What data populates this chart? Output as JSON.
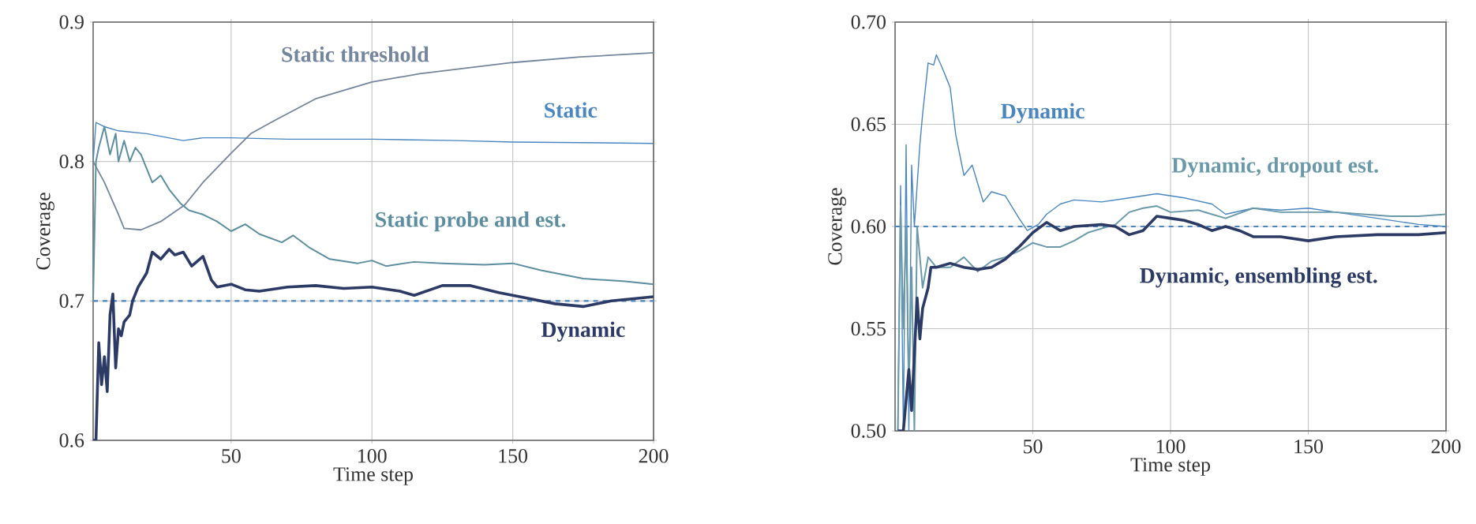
{
  "chart_data": [
    {
      "type": "line",
      "xlabel": "Time step",
      "ylabel": "Coverage",
      "xlim": [
        1,
        200
      ],
      "ylim": [
        0.6,
        0.9
      ],
      "xticks": [
        50,
        100,
        150,
        200
      ],
      "yticks": [
        0.6,
        0.7,
        0.8,
        0.9
      ],
      "grid": true,
      "legend": false,
      "marker": "none",
      "ref_lines": [
        {
          "axis": "y",
          "value": 0.7,
          "color": "#4a86c0",
          "line_style": "dashed"
        }
      ],
      "series": [
        {
          "name": "Static threshold",
          "color": "#74869e",
          "x": [
            1,
            5,
            10,
            12,
            18,
            25,
            33.6,
            40,
            50,
            57,
            65,
            80,
            100,
            117,
            150,
            174,
            200
          ],
          "values": [
            0.8,
            0.785,
            0.762,
            0.752,
            0.751,
            0.757,
            0.769,
            0.785,
            0.806,
            0.82,
            0.829,
            0.845,
            0.857,
            0.863,
            0.871,
            0.875,
            0.878
          ]
        },
        {
          "name": "Static",
          "color": "#4a86c0",
          "x": [
            1,
            2,
            5,
            10,
            20,
            33,
            40,
            50,
            70,
            100,
            130,
            150,
            200
          ],
          "values": [
            0.8,
            0.828,
            0.825,
            0.822,
            0.82,
            0.815,
            0.817,
            0.817,
            0.816,
            0.816,
            0.815,
            0.814,
            0.813
          ]
        },
        {
          "name": "Static probe and est.",
          "color": "#5c8ea0",
          "x": [
            1,
            2,
            3,
            5,
            7,
            9,
            10,
            12,
            14,
            16,
            18,
            20,
            22,
            25,
            28,
            32,
            35,
            40,
            45,
            50,
            55,
            60,
            68,
            72,
            78,
            85,
            95,
            100,
            105,
            115,
            125,
            140,
            150,
            160,
            175,
            190,
            200
          ],
          "values": [
            0.7,
            0.8,
            0.81,
            0.825,
            0.805,
            0.82,
            0.8,
            0.815,
            0.8,
            0.81,
            0.805,
            0.795,
            0.785,
            0.79,
            0.78,
            0.77,
            0.765,
            0.762,
            0.757,
            0.75,
            0.755,
            0.748,
            0.742,
            0.747,
            0.738,
            0.73,
            0.727,
            0.729,
            0.725,
            0.728,
            0.727,
            0.726,
            0.727,
            0.722,
            0.716,
            0.714,
            0.712
          ]
        },
        {
          "name": "Dynamic",
          "color": "#2c3a66",
          "x": [
            1,
            2,
            3,
            4,
            5,
            6,
            7,
            8,
            9,
            10,
            11,
            12,
            14,
            15,
            17,
            20,
            22,
            25,
            28,
            30,
            33,
            36,
            40,
            43,
            45,
            50,
            55,
            60,
            70,
            80,
            90,
            100,
            110,
            115,
            125,
            135,
            145,
            155,
            165,
            175,
            185,
            200
          ],
          "values": [
            0.6,
            0.6,
            0.67,
            0.64,
            0.66,
            0.635,
            0.69,
            0.705,
            0.652,
            0.68,
            0.675,
            0.685,
            0.69,
            0.7,
            0.71,
            0.72,
            0.735,
            0.73,
            0.737,
            0.733,
            0.735,
            0.725,
            0.732,
            0.715,
            0.71,
            0.712,
            0.708,
            0.707,
            0.71,
            0.711,
            0.709,
            0.71,
            0.707,
            0.704,
            0.711,
            0.711,
            0.706,
            0.702,
            0.698,
            0.696,
            0.7,
            0.703
          ]
        }
      ]
    },
    {
      "type": "line",
      "xlabel": "Time step",
      "ylabel": "Coverage",
      "xlim": [
        0,
        200
      ],
      "ylim": [
        0.5,
        0.7
      ],
      "xticks": [
        50,
        100,
        150,
        200
      ],
      "yticks": [
        {
          "value": 0.5,
          "label": "0.50"
        },
        0.55,
        {
          "value": 0.6,
          "label": "0.60"
        },
        0.65,
        {
          "value": 0.7,
          "label": "0.70"
        }
      ],
      "grid": true,
      "legend": false,
      "marker": "none",
      "ref_lines": [
        {
          "axis": "y",
          "value": 0.6,
          "color": "#4a86c0",
          "line_style": "dashed"
        }
      ],
      "series": [
        {
          "name": "Dynamic",
          "color": "#4a86c0",
          "x": [
            1,
            2,
            3,
            4,
            5,
            6,
            7,
            9,
            10,
            12,
            14,
            15,
            17,
            20,
            22,
            25,
            28,
            32,
            35,
            40,
            45,
            48,
            52,
            55,
            60,
            65,
            75,
            85,
            95,
            105,
            115,
            120,
            130,
            140,
            150,
            160,
            175,
            190,
            200
          ],
          "values": [
            0.5,
            0.62,
            0.5,
            0.64,
            0.5,
            0.63,
            0.6,
            0.64,
            0.655,
            0.68,
            0.679,
            0.684,
            0.678,
            0.668,
            0.645,
            0.625,
            0.63,
            0.612,
            0.617,
            0.615,
            0.604,
            0.598,
            0.601,
            0.606,
            0.611,
            0.613,
            0.612,
            0.614,
            0.616,
            0.614,
            0.611,
            0.606,
            0.609,
            0.608,
            0.609,
            0.607,
            0.604,
            0.601,
            0.6
          ]
        },
        {
          "name": "Dynamic, dropout est.",
          "color": "#6a9aaa",
          "x": [
            1,
            2,
            3,
            4,
            5,
            6,
            7,
            8,
            10,
            12,
            15,
            20,
            25,
            30,
            35,
            40,
            45,
            50,
            55,
            60,
            65,
            70,
            80,
            85,
            90,
            95,
            100,
            110,
            115,
            120,
            130,
            140,
            150,
            160,
            170,
            180,
            190,
            200
          ],
          "values": [
            0.5,
            0.61,
            0.55,
            0.6,
            0.52,
            0.58,
            0.5,
            0.6,
            0.57,
            0.585,
            0.58,
            0.58,
            0.585,
            0.578,
            0.583,
            0.585,
            0.588,
            0.592,
            0.59,
            0.59,
            0.593,
            0.597,
            0.601,
            0.607,
            0.609,
            0.61,
            0.607,
            0.608,
            0.606,
            0.604,
            0.609,
            0.607,
            0.607,
            0.607,
            0.606,
            0.605,
            0.605,
            0.606
          ]
        },
        {
          "name": "Dynamic, ensembling est.",
          "color": "#2c3a66",
          "x": [
            1,
            3,
            5,
            6,
            8,
            9,
            10,
            12,
            13,
            15,
            20,
            25,
            30,
            35,
            40,
            45,
            50,
            55,
            60,
            65,
            75,
            80,
            85,
            90,
            95,
            100,
            105,
            110,
            115,
            120,
            125,
            130,
            140,
            150,
            160,
            175,
            190,
            200
          ],
          "values": [
            0.5,
            0.5,
            0.53,
            0.51,
            0.565,
            0.545,
            0.56,
            0.57,
            0.58,
            0.58,
            0.582,
            0.58,
            0.579,
            0.58,
            0.584,
            0.59,
            0.597,
            0.602,
            0.598,
            0.6,
            0.601,
            0.6,
            0.596,
            0.598,
            0.605,
            0.604,
            0.603,
            0.601,
            0.598,
            0.6,
            0.598,
            0.595,
            0.595,
            0.593,
            0.595,
            0.596,
            0.596,
            0.597
          ]
        }
      ]
    }
  ]
}
